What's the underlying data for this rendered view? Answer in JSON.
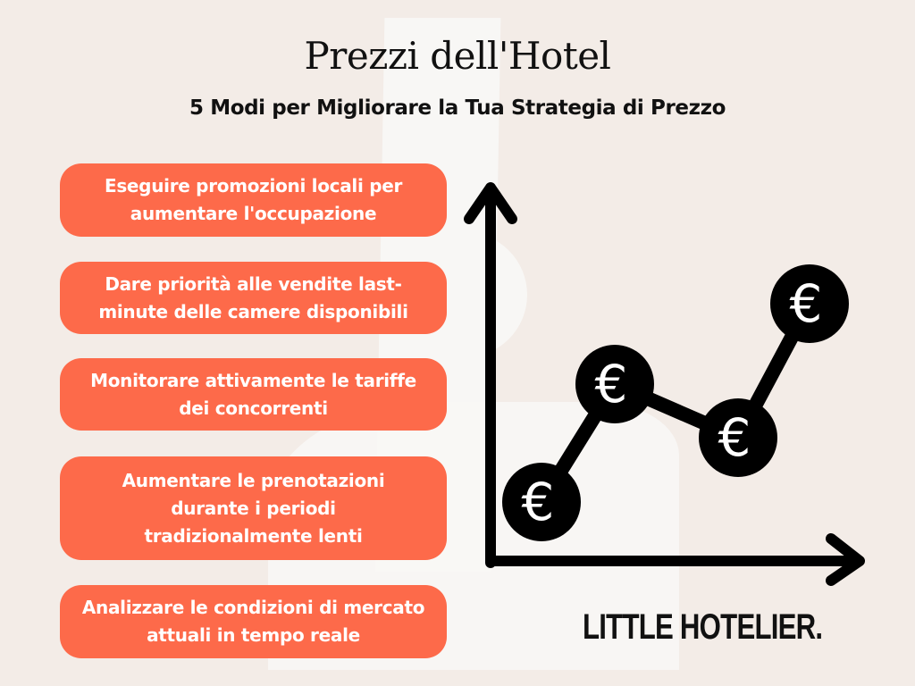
{
  "header": {
    "title": "Prezzi dell'Hotel",
    "subtitle": "5 Modi per Migliorare la Tua Strategia di Prezzo"
  },
  "tips": [
    "Eseguire promozioni locali per aumentare l'occupazione",
    "Dare priorità alle vendite last-minute delle camere disponibili",
    "Monitorare attivamente le tariffe dei concorrenti",
    "Aumentare le prenotazioni durante i periodi tradizionalmente lenti",
    "Analizzare le condizioni di mercato attuali in tempo reale"
  ],
  "illustration": {
    "icon": "euro-coin-icon",
    "symbol": "€",
    "trend": [
      1,
      3,
      2,
      5
    ]
  },
  "brand": {
    "logo": "LITTLE HOTELIER."
  },
  "colors": {
    "background": "#f3ece7",
    "accent": "#fd6a4a",
    "text": "#111111"
  }
}
